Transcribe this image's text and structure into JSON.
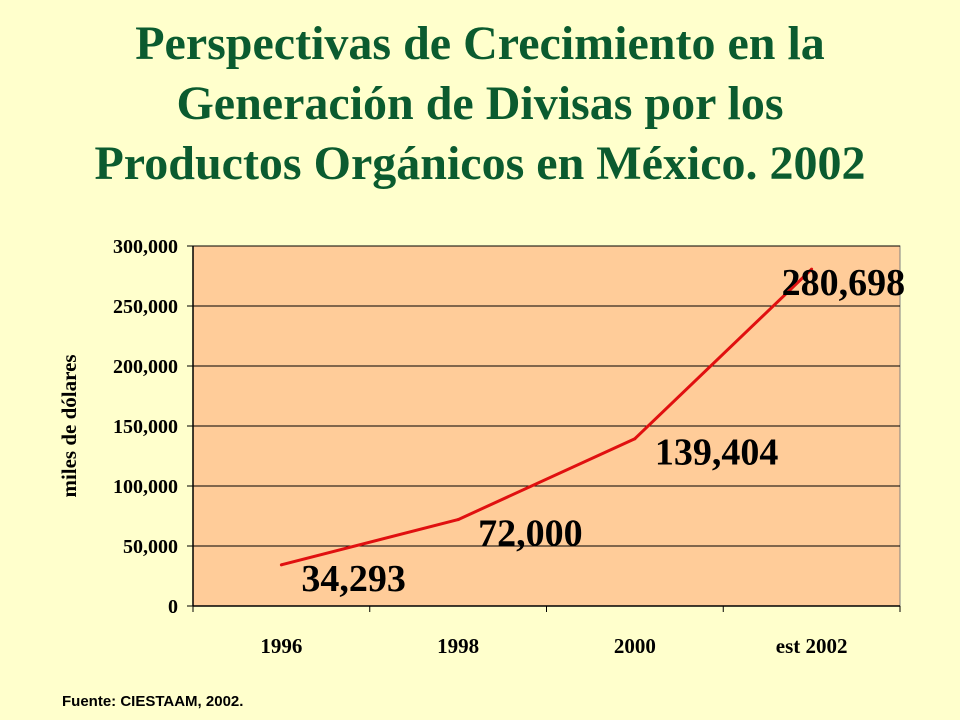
{
  "title_lines": [
    "Perspectivas de Crecimiento en la",
    "Generación de Divisas por los",
    "Productos Orgánicos en México. 2002"
  ],
  "source": "Fuente: CIESTAAM, 2002.",
  "colors": {
    "title": "#0B5B2F",
    "plot_bg": "#FFCC99",
    "line": "#E01010",
    "page_bg": "#FFFFCC"
  },
  "chart_data": {
    "type": "line",
    "categories": [
      "1996",
      "1998",
      "2000",
      "est 2002"
    ],
    "values": [
      34293,
      72000,
      139404,
      280698
    ],
    "data_labels": [
      "34,293",
      "72,000",
      "139,404",
      "280,698"
    ],
    "ylabel": "miles de dólares",
    "ylim": [
      0,
      300000
    ],
    "yticks": [
      0,
      50000,
      100000,
      150000,
      200000,
      250000,
      300000
    ],
    "ytick_labels": [
      "0",
      "50,000",
      "100,000",
      "150,000",
      "200,000",
      "250,000",
      "300,000"
    ],
    "grid": true,
    "legend": "none"
  }
}
